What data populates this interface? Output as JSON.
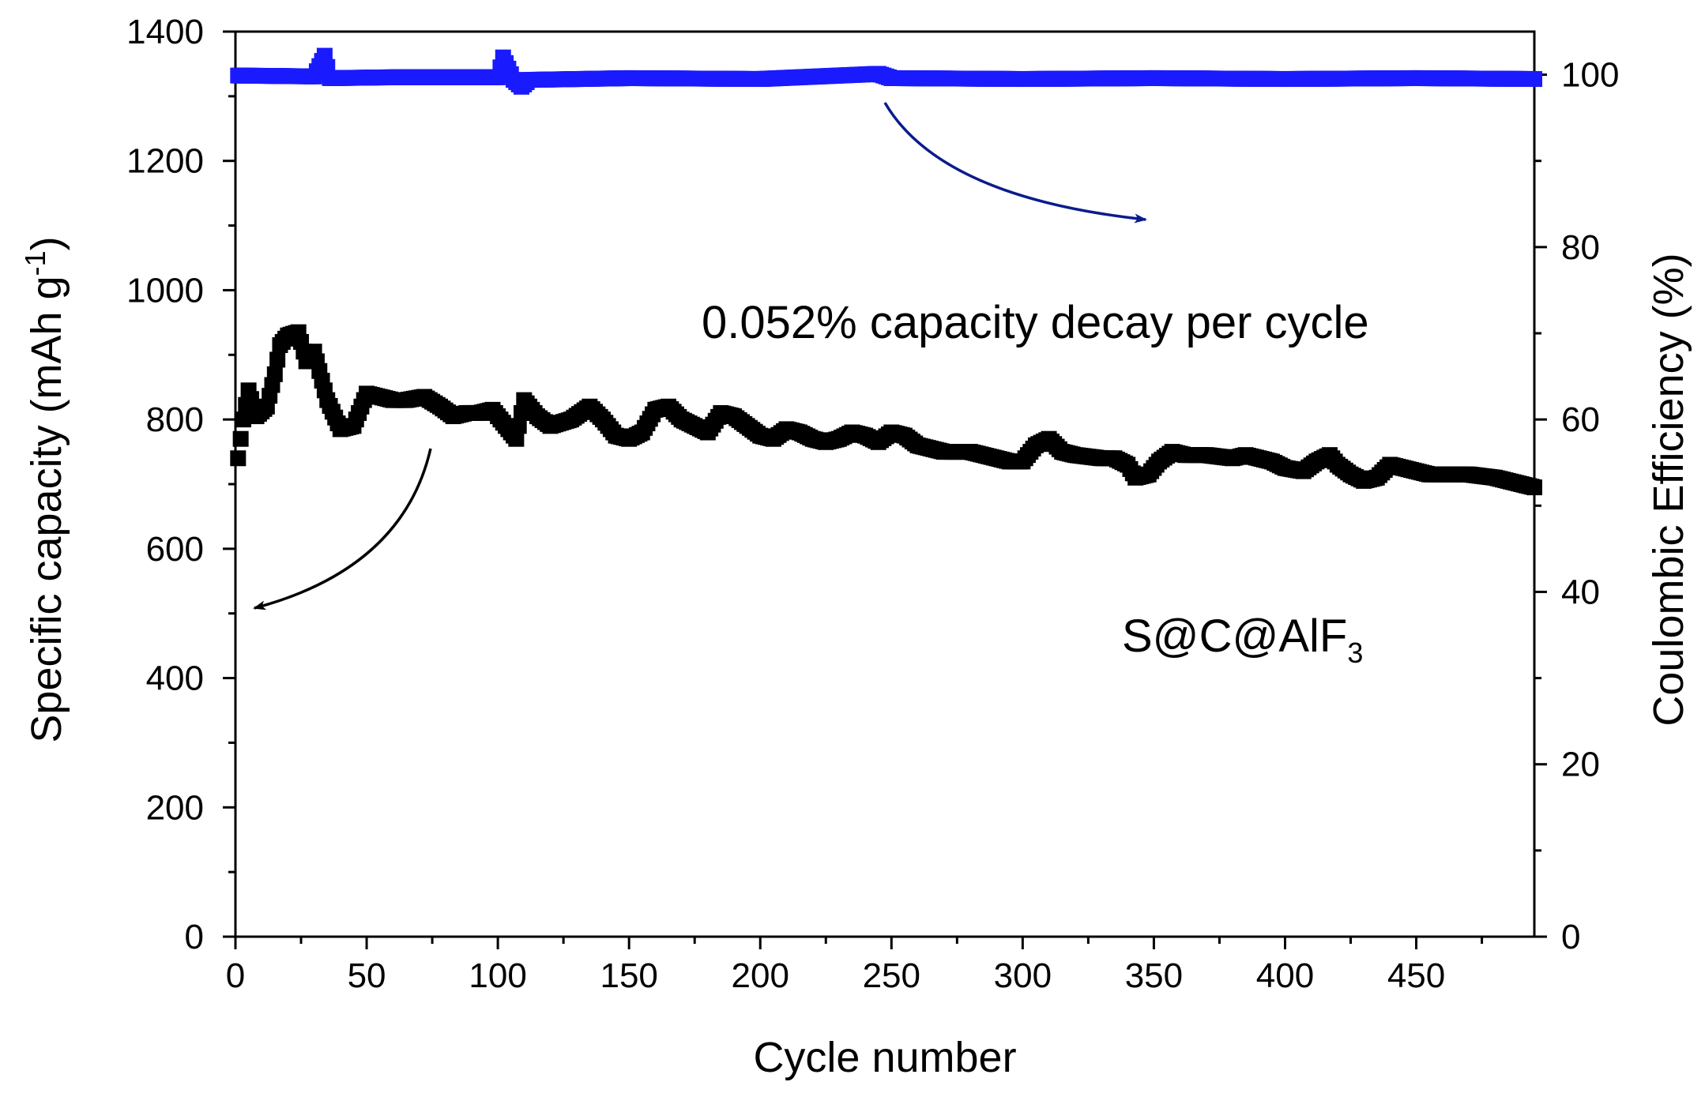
{
  "chart_data": {
    "type": "scatter",
    "xlabel": "Cycle number",
    "ylabel_left": {
      "main": "Specific capacity (mAh g",
      "sup": "-1",
      "end": ")"
    },
    "ylabel_right": "Coulombic Efficiency (%)",
    "xlim": [
      0,
      495
    ],
    "ylim_left": [
      0,
      1400
    ],
    "ylim_right": [
      0,
      105
    ],
    "x_ticks": [
      0,
      50,
      100,
      150,
      200,
      250,
      300,
      350,
      400,
      450
    ],
    "y_left_ticks": [
      0,
      200,
      400,
      600,
      800,
      1000,
      1200,
      1400
    ],
    "y_right_ticks": [
      0,
      20,
      40,
      60,
      80,
      100
    ],
    "annotations": {
      "decay": "0.052% capacity decay per cycle",
      "sample": {
        "main": "S@C@AlF",
        "sub": "3"
      }
    },
    "series": [
      {
        "name": "Specific capacity",
        "axis": "left",
        "color": "#000000",
        "marker": "square",
        "anchors": [
          [
            1,
            740
          ],
          [
            3,
            800
          ],
          [
            5,
            845
          ],
          [
            8,
            805
          ],
          [
            12,
            820
          ],
          [
            15,
            870
          ],
          [
            17,
            915
          ],
          [
            20,
            930
          ],
          [
            24,
            935
          ],
          [
            27,
            890
          ],
          [
            30,
            905
          ],
          [
            35,
            830
          ],
          [
            40,
            785
          ],
          [
            45,
            790
          ],
          [
            50,
            840
          ],
          [
            55,
            835
          ],
          [
            60,
            830
          ],
          [
            65,
            830
          ],
          [
            72,
            835
          ],
          [
            78,
            820
          ],
          [
            83,
            805
          ],
          [
            88,
            810
          ],
          [
            93,
            810
          ],
          [
            98,
            815
          ],
          [
            103,
            790
          ],
          [
            107,
            770
          ],
          [
            110,
            830
          ],
          [
            115,
            805
          ],
          [
            120,
            790
          ],
          [
            128,
            800
          ],
          [
            135,
            820
          ],
          [
            140,
            800
          ],
          [
            145,
            775
          ],
          [
            150,
            770
          ],
          [
            155,
            780
          ],
          [
            160,
            815
          ],
          [
            165,
            820
          ],
          [
            170,
            800
          ],
          [
            175,
            790
          ],
          [
            180,
            780
          ],
          [
            185,
            810
          ],
          [
            190,
            805
          ],
          [
            195,
            790
          ],
          [
            200,
            775
          ],
          [
            205,
            770
          ],
          [
            210,
            785
          ],
          [
            215,
            780
          ],
          [
            220,
            770
          ],
          [
            225,
            765
          ],
          [
            230,
            770
          ],
          [
            235,
            780
          ],
          [
            240,
            775
          ],
          [
            245,
            765
          ],
          [
            250,
            780
          ],
          [
            255,
            775
          ],
          [
            260,
            760
          ],
          [
            265,
            755
          ],
          [
            270,
            750
          ],
          [
            280,
            750
          ],
          [
            290,
            740
          ],
          [
            295,
            735
          ],
          [
            300,
            735
          ],
          [
            305,
            760
          ],
          [
            310,
            770
          ],
          [
            315,
            750
          ],
          [
            320,
            745
          ],
          [
            330,
            740
          ],
          [
            335,
            740
          ],
          [
            340,
            730
          ],
          [
            343,
            710
          ],
          [
            348,
            715
          ],
          [
            352,
            735
          ],
          [
            357,
            750
          ],
          [
            362,
            745
          ],
          [
            370,
            745
          ],
          [
            380,
            740
          ],
          [
            385,
            745
          ],
          [
            390,
            740
          ],
          [
            395,
            735
          ],
          [
            400,
            725
          ],
          [
            407,
            720
          ],
          [
            412,
            735
          ],
          [
            417,
            745
          ],
          [
            420,
            730
          ],
          [
            425,
            715
          ],
          [
            430,
            705
          ],
          [
            435,
            710
          ],
          [
            440,
            730
          ],
          [
            445,
            725
          ],
          [
            450,
            720
          ],
          [
            455,
            715
          ],
          [
            460,
            715
          ],
          [
            470,
            715
          ],
          [
            480,
            710
          ],
          [
            490,
            700
          ],
          [
            495,
            695
          ]
        ]
      },
      {
        "name": "Coulombic Efficiency",
        "axis": "right",
        "color": "#1a1aff",
        "marker": "square",
        "anchors": [
          [
            1,
            99.9
          ],
          [
            30,
            99.8
          ],
          [
            34,
            102.2
          ],
          [
            36,
            99.6
          ],
          [
            60,
            99.7
          ],
          [
            100,
            99.7
          ],
          [
            102,
            102.0
          ],
          [
            106,
            99.4
          ],
          [
            109,
            98.6
          ],
          [
            112,
            99.4
          ],
          [
            150,
            99.6
          ],
          [
            200,
            99.5
          ],
          [
            245,
            100.1
          ],
          [
            250,
            99.6
          ],
          [
            300,
            99.5
          ],
          [
            350,
            99.6
          ],
          [
            400,
            99.5
          ],
          [
            450,
            99.6
          ],
          [
            495,
            99.5
          ]
        ]
      }
    ]
  }
}
